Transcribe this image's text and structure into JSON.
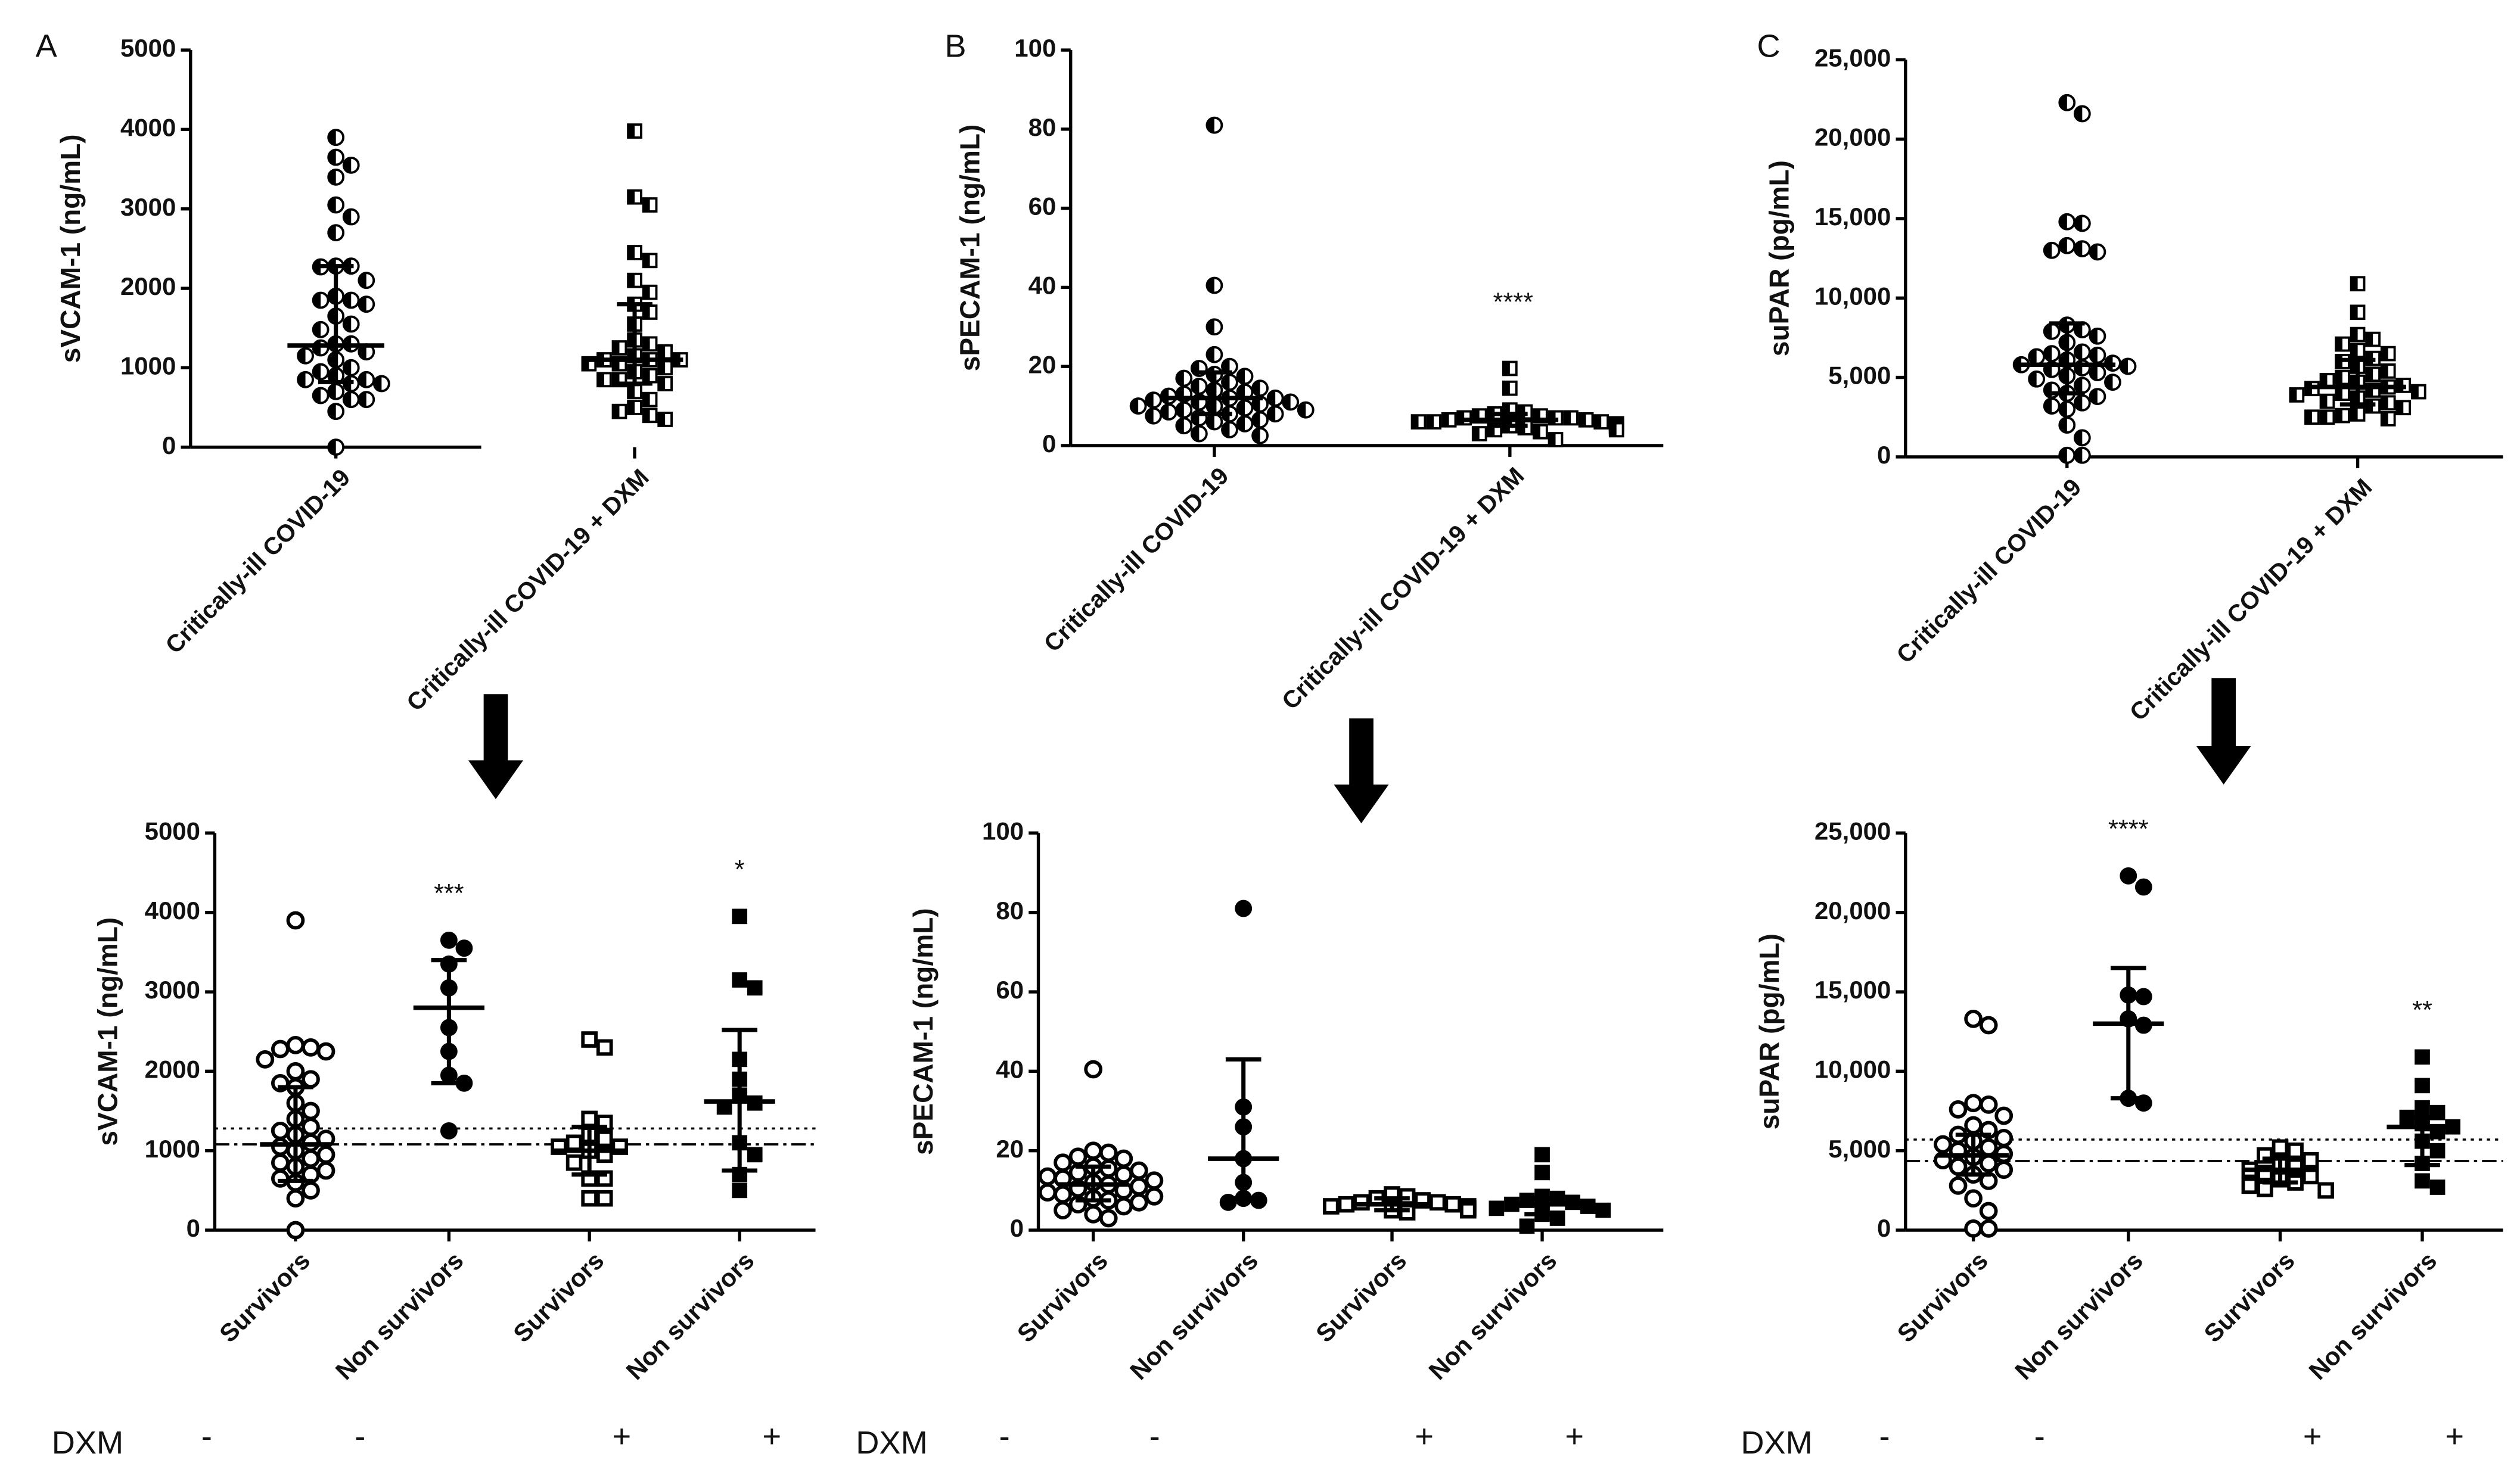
{
  "panels": [
    {
      "letter": "A",
      "dxm_label": "DXM",
      "dxm_marks": [
        "-",
        "-",
        "+",
        "+"
      ],
      "top": {
        "type": "scatter",
        "ylabel": "sVCAM-1 (ng/mL)",
        "ylim": [
          0,
          5000
        ],
        "yticks": [
          {
            "v": 0,
            "label": "0"
          },
          {
            "v": 1000,
            "label": "1000"
          },
          {
            "v": 2000,
            "label": "2000"
          },
          {
            "v": 3000,
            "label": "3000"
          },
          {
            "v": 4000,
            "label": "4000"
          },
          {
            "v": 5000,
            "label": "5000"
          }
        ],
        "groups": [
          {
            "name": "Critically-ill COVID-19",
            "marker": "circle-half",
            "values": [
              3900,
              3650,
              3550,
              3400,
              3050,
              2900,
              2700,
              2280,
              2280,
              2270,
              2100,
              1900,
              1850,
              1850,
              1800,
              1650,
              1550,
              1480,
              1300,
              1300,
              1250,
              1200,
              1150,
              1100,
              1000,
              950,
              900,
              850,
              850,
              800,
              800,
              700,
              650,
              600,
              600,
              450,
              0
            ],
            "median": 1280,
            "q1": 820,
            "q3": 2280
          },
          {
            "name": "Critically-ill COVID-19 + DXM",
            "marker": "square-half",
            "values": [
              3980,
              3150,
              3050,
              2450,
              2350,
              2100,
              1950,
              1800,
              1700,
              1550,
              1350,
              1300,
              1250,
              1200,
              1150,
              1100,
              1100,
              1100,
              1050,
              1050,
              1000,
              950,
              900,
              850,
              850,
              800,
              700,
              600,
              500,
              450,
              400,
              350
            ],
            "median": 1100,
            "q1": 800,
            "q3": 1800
          }
        ],
        "annotations": []
      },
      "bottom": {
        "type": "scatter",
        "ylabel": "sVCAM-1 (ng/mL)",
        "ylim": [
          0,
          5000
        ],
        "yticks": [
          {
            "v": 0,
            "label": "0"
          },
          {
            "v": 1000,
            "label": "1000"
          },
          {
            "v": 2000,
            "label": "2000"
          },
          {
            "v": 3000,
            "label": "3000"
          },
          {
            "v": 4000,
            "label": "4000"
          },
          {
            "v": 5000,
            "label": "5000"
          }
        ],
        "dotted_line": 1280,
        "dashdot_line": 1080,
        "groups": [
          {
            "name": "Survivors",
            "marker": "circle-open",
            "values": [
              3900,
              2330,
              2300,
              2280,
              2250,
              2150,
              2000,
              1900,
              1850,
              1800,
              1600,
              1500,
              1400,
              1300,
              1250,
              1200,
              1150,
              1100,
              1050,
              1000,
              950,
              900,
              850,
              800,
              750,
              700,
              650,
              600,
              500,
              400,
              0
            ],
            "median": 1080,
            "q1": 620,
            "q3": 1800,
            "sig": ""
          },
          {
            "name": "Non survivors",
            "marker": "circle-filled",
            "values": [
              3650,
              3550,
              3350,
              3050,
              2550,
              2250,
              1950,
              1850,
              1250
            ],
            "median": 2800,
            "q1": 1850,
            "q3": 3400,
            "sig": "***"
          },
          {
            "name": "Survivors",
            "marker": "square-open",
            "values": [
              2400,
              2300,
              1400,
              1350,
              1200,
              1150,
              1100,
              1050,
              1050,
              1000,
              950,
              850,
              650,
              650,
              400,
              400
            ],
            "median": 1000,
            "q1": 700,
            "q3": 1300,
            "sig": ""
          },
          {
            "name": "Non survivors",
            "marker": "square-filled",
            "values": [
              3950,
              3150,
              3050,
              2150,
              1900,
              1700,
              1600,
              1550,
              1100,
              950,
              700,
              500
            ],
            "median": 1620,
            "q1": 750,
            "q3": 2520,
            "sig": "*"
          }
        ]
      },
      "arrow": "down-arrow"
    },
    {
      "letter": "B",
      "dxm_label": "DXM",
      "dxm_marks": [
        "-",
        "-",
        "+",
        "+"
      ],
      "top": {
        "type": "scatter",
        "ylabel": "sPECAM-1 (ng/mL)",
        "ylim": [
          0,
          100
        ],
        "yticks": [
          {
            "v": 0,
            "label": "0"
          },
          {
            "v": 20,
            "label": "20"
          },
          {
            "v": 40,
            "label": "40"
          },
          {
            "v": 60,
            "label": "60"
          },
          {
            "v": 80,
            "label": "80"
          },
          {
            "v": 100,
            "label": "100"
          }
        ],
        "groups": [
          {
            "name": "Critically-ill COVID-19",
            "marker": "circle-half",
            "values": [
              81,
              40.5,
              30,
              23,
              20,
              19.5,
              18,
              17.5,
              17,
              16,
              15,
              14.5,
              14,
              13.5,
              13,
              12.5,
              12,
              12,
              11.5,
              11,
              11,
              10.5,
              10,
              10,
              9.5,
              9,
              9,
              8.5,
              8,
              8,
              7.5,
              7,
              6.5,
              6,
              5.5,
              5,
              4,
              3,
              2.5
            ],
            "median": 12,
            "q1": 8,
            "q3": 18.5
          },
          {
            "name": "Critically-ill COVID-19 + DXM",
            "marker": "square-half",
            "values": [
              19.5,
              14.5,
              9,
              8.5,
              8,
              7.5,
              7.5,
              7,
              7,
              7,
              6.5,
              6.5,
              6,
              6,
              6,
              5.5,
              5.5,
              5,
              5,
              5,
              4.5,
              4.5,
              4,
              4,
              3.5,
              3,
              1.5
            ],
            "median": 6.5,
            "q1": 5,
            "q3": 8,
            "sig": "****"
          }
        ],
        "annotations": [
          "****"
        ]
      },
      "bottom": {
        "type": "scatter",
        "ylabel": "sPECAM-1 (ng/mL)",
        "ylim": [
          0,
          100
        ],
        "yticks": [
          {
            "v": 0,
            "label": "0"
          },
          {
            "v": 20,
            "label": "20"
          },
          {
            "v": 40,
            "label": "40"
          },
          {
            "v": 60,
            "label": "60"
          },
          {
            "v": 80,
            "label": "80"
          },
          {
            "v": 100,
            "label": "100"
          }
        ],
        "dotted_line": null,
        "dashdot_line": null,
        "groups": [
          {
            "name": "Survivors",
            "marker": "circle-open",
            "values": [
              40.5,
              20,
              19.5,
              18.5,
              18,
              17,
              16,
              15.5,
              15,
              14.5,
              14,
              13.5,
              13,
              12.5,
              12,
              11.5,
              11,
              10.5,
              10,
              9.5,
              9,
              8.5,
              8,
              7.5,
              7,
              6.5,
              6,
              5,
              4,
              3
            ],
            "median": 11.5,
            "q1": 7.5,
            "q3": 16,
            "sig": ""
          },
          {
            "name": "Non survivors",
            "marker": "circle-filled",
            "values": [
              81,
              31,
              26,
              18,
              12,
              8,
              7.5,
              7
            ],
            "median": 18,
            "q1": 8,
            "q3": 43,
            "sig": ""
          },
          {
            "name": "Survivors",
            "marker": "square-open",
            "values": [
              9,
              8.5,
              8,
              7.5,
              7,
              7,
              6.5,
              6.5,
              6,
              6,
              5.5,
              5.5,
              5,
              5,
              4.5
            ],
            "median": 6.5,
            "q1": 5,
            "q3": 8,
            "sig": ""
          },
          {
            "name": "Non survivors",
            "marker": "square-filled",
            "values": [
              19,
              14.5,
              8.5,
              8,
              7.5,
              7,
              6.5,
              6,
              5.5,
              5,
              4,
              3,
              1
            ],
            "median": 6.5,
            "q1": 4,
            "q3": 8,
            "sig": ""
          }
        ]
      },
      "arrow": "down-arrow"
    },
    {
      "letter": "C",
      "dxm_label": "DXM",
      "dxm_marks": [
        "-",
        "-",
        "+",
        "+"
      ],
      "top": {
        "type": "scatter",
        "ylabel": "suPAR (pg/mL)",
        "ylim": [
          0,
          25000
        ],
        "yticks": [
          {
            "v": 0,
            "label": "0"
          },
          {
            "v": 5000,
            "label": "5,000"
          },
          {
            "v": 10000,
            "label": "10,000"
          },
          {
            "v": 15000,
            "label": "15,000"
          },
          {
            "v": 20000,
            "label": "20,000"
          },
          {
            "v": 25000,
            "label": "25,000"
          }
        ],
        "groups": [
          {
            "name": "Critically-ill COVID-19",
            "marker": "circle-half",
            "values": [
              22300,
              21600,
              14800,
              14700,
              13300,
              13100,
              13000,
              12900,
              8300,
              8000,
              7900,
              7600,
              7200,
              6600,
              6500,
              6400,
              6300,
              6100,
              5900,
              5800,
              5700,
              5600,
              5500,
              5300,
              5100,
              4900,
              4700,
              4500,
              4200,
              4000,
              3800,
              3400,
              3200,
              3000,
              2000,
              1200,
              100,
              100
            ],
            "median": 5800,
            "q1": 4000,
            "q3": 8400
          },
          {
            "name": "Critically-ill COVID-19 + DXM",
            "marker": "square-half",
            "values": [
              10900,
              9100,
              7700,
              7400,
              7100,
              6700,
              6500,
              6200,
              6000,
              5700,
              5400,
              5200,
              5000,
              4800,
              4700,
              4500,
              4400,
              4300,
              4200,
              4100,
              4000,
              3900,
              3700,
              3500,
              3400,
              3200,
              3100,
              2700,
              2600,
              2500,
              2500,
              2400
            ],
            "median": 4400,
            "q1": 3300,
            "q3": 6100
          }
        ],
        "annotations": []
      },
      "bottom": {
        "type": "scatter",
        "ylabel": "suPAR (pg/mL)",
        "ylim": [
          0,
          25000
        ],
        "yticks": [
          {
            "v": 0,
            "label": "0"
          },
          {
            "v": 5000,
            "label": "5,000"
          },
          {
            "v": 10000,
            "label": "10,000"
          },
          {
            "v": 15000,
            "label": "15,000"
          },
          {
            "v": 20000,
            "label": "20,000"
          },
          {
            "v": 25000,
            "label": "25,000"
          }
        ],
        "dotted_line": 5700,
        "dashdot_line": 4350,
        "groups": [
          {
            "name": "Survivors",
            "marker": "circle-open",
            "values": [
              13300,
              12900,
              8000,
              7900,
              7600,
              7200,
              6600,
              6300,
              6000,
              5800,
              5600,
              5400,
              5200,
              5000,
              4800,
              4600,
              4400,
              4200,
              4000,
              3800,
              3500,
              3100,
              2800,
              2000,
              1200,
              100,
              100
            ],
            "median": 4700,
            "q1": 3500,
            "q3": 6000,
            "sig": ""
          },
          {
            "name": "Non survivors",
            "marker": "circle-filled",
            "values": [
              22300,
              21600,
              14800,
              14700,
              13300,
              12900,
              8300,
              8000
            ],
            "median": 13000,
            "q1": 8300,
            "q3": 16500,
            "sig": "****"
          },
          {
            "name": "Survivors",
            "marker": "square-open",
            "values": [
              5200,
              5000,
              4700,
              4400,
              4200,
              4000,
              3800,
              3600,
              3400,
              3200,
              3000,
              2800,
              2600,
              2500
            ],
            "median": 3800,
            "q1": 3000,
            "q3": 4500,
            "sig": ""
          },
          {
            "name": "Non survivors",
            "marker": "square-filled",
            "values": [
              10900,
              9100,
              7700,
              7400,
              7100,
              6700,
              6500,
              6200,
              5600,
              5000,
              4200,
              3100,
              2700
            ],
            "median": 6500,
            "q1": 4100,
            "q3": 7100,
            "sig": "**"
          }
        ]
      },
      "arrow": "down-arrow"
    }
  ]
}
